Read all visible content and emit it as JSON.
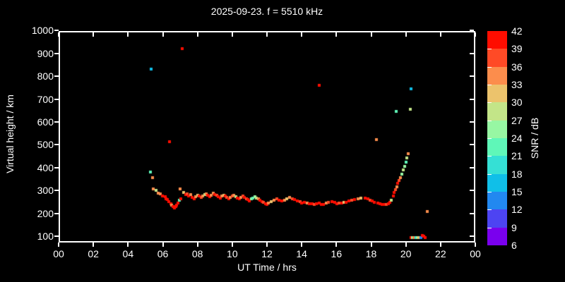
{
  "header": {
    "title": "2025-09-23. f = 5510 kHz"
  },
  "chart_data": {
    "type": "scatter",
    "title": "2025-09-23. f = 5510 kHz",
    "xlabel": "UT Time / hrs",
    "ylabel": "Virtual height / km",
    "colorbar_label": "SNR / dB",
    "background": "#000000",
    "foreground": "#ffffff",
    "xlim": [
      0,
      24
    ],
    "ylim": [
      100,
      1000
    ],
    "grid": false,
    "x_tick_hours": [
      0,
      2,
      4,
      6,
      8,
      10,
      12,
      14,
      16,
      18,
      20,
      22,
      24
    ],
    "x_ticks": [
      "00",
      "02",
      "04",
      "06",
      "08",
      "10",
      "12",
      "14",
      "16",
      "18",
      "20",
      "22",
      "00"
    ],
    "y_ticks": [
      100,
      200,
      300,
      400,
      500,
      600,
      700,
      800,
      900,
      1000
    ],
    "colorbar": {
      "min": 6,
      "max": 42,
      "step": 3,
      "tick_labels": [
        "6",
        "9",
        "12",
        "15",
        "18",
        "21",
        "24",
        "27",
        "30",
        "33",
        "36",
        "39",
        "42"
      ],
      "colors": [
        "#7a00ee",
        "#4d44f2",
        "#2288f0",
        "#10bfe8",
        "#35e0d5",
        "#5ff7b8",
        "#97f7a3",
        "#c3e588",
        "#ecc36c",
        "#fc8d4c",
        "#ff4a26",
        "#ff0d00"
      ]
    },
    "points_format": [
      "ut_hours",
      "virtual_height_km",
      "snr_db"
    ],
    "points": [
      [
        5.28,
        381,
        22
      ],
      [
        5.33,
        830,
        16
      ],
      [
        5.41,
        356,
        34
      ],
      [
        5.44,
        308,
        34
      ],
      [
        5.61,
        301,
        28
      ],
      [
        5.75,
        288,
        34
      ],
      [
        5.87,
        284,
        34
      ],
      [
        5.98,
        277,
        40
      ],
      [
        6.13,
        273,
        40
      ],
      [
        6.2,
        265,
        40
      ],
      [
        6.28,
        260,
        40
      ],
      [
        6.36,
        252,
        40
      ],
      [
        6.39,
        513,
        40
      ],
      [
        6.46,
        243,
        40
      ],
      [
        6.52,
        235,
        34
      ],
      [
        6.6,
        229,
        40
      ],
      [
        6.66,
        223,
        40
      ],
      [
        6.75,
        229,
        40
      ],
      [
        6.79,
        237,
        40
      ],
      [
        6.89,
        245,
        40
      ],
      [
        6.95,
        258,
        22
      ],
      [
        7.01,
        307,
        34
      ],
      [
        7.05,
        262,
        40
      ],
      [
        7.13,
        922,
        40
      ],
      [
        7.2,
        291,
        31
      ],
      [
        7.31,
        281,
        40
      ],
      [
        7.4,
        284,
        37
      ],
      [
        7.5,
        277,
        40
      ],
      [
        7.6,
        282,
        34
      ],
      [
        7.7,
        270,
        40
      ],
      [
        7.8,
        262,
        40
      ],
      [
        7.9,
        272,
        34
      ],
      [
        8.0,
        280,
        31
      ],
      [
        8.1,
        277,
        40
      ],
      [
        8.2,
        270,
        37
      ],
      [
        8.3,
        275,
        34
      ],
      [
        8.4,
        282,
        28
      ],
      [
        8.5,
        285,
        34
      ],
      [
        8.6,
        278,
        40
      ],
      [
        8.7,
        272,
        40
      ],
      [
        8.8,
        280,
        34
      ],
      [
        8.9,
        288,
        34
      ],
      [
        9.0,
        283,
        40
      ],
      [
        9.1,
        278,
        37
      ],
      [
        9.2,
        272,
        40
      ],
      [
        9.3,
        268,
        40
      ],
      [
        9.4,
        275,
        34
      ],
      [
        9.5,
        280,
        31
      ],
      [
        9.6,
        276,
        40
      ],
      [
        9.7,
        270,
        37
      ],
      [
        9.8,
        265,
        40
      ],
      [
        9.9,
        270,
        34
      ],
      [
        10.0,
        276,
        37
      ],
      [
        10.1,
        280,
        34
      ],
      [
        10.2,
        273,
        28
      ],
      [
        10.3,
        268,
        40
      ],
      [
        10.4,
        262,
        40
      ],
      [
        10.5,
        270,
        34
      ],
      [
        10.6,
        276,
        37
      ],
      [
        10.7,
        271,
        40
      ],
      [
        10.8,
        265,
        37
      ],
      [
        10.9,
        259,
        40
      ],
      [
        11.0,
        255,
        40
      ],
      [
        11.1,
        262,
        25
      ],
      [
        11.2,
        268,
        22
      ],
      [
        11.3,
        273,
        25
      ],
      [
        11.4,
        267,
        28
      ],
      [
        11.5,
        262,
        34
      ],
      [
        11.6,
        257,
        40
      ],
      [
        11.7,
        252,
        40
      ],
      [
        11.8,
        247,
        37
      ],
      [
        11.9,
        243,
        40
      ],
      [
        12.0,
        240,
        40
      ],
      [
        12.1,
        245,
        34
      ],
      [
        12.25,
        252,
        31
      ],
      [
        12.4,
        258,
        34
      ],
      [
        12.55,
        263,
        37
      ],
      [
        12.7,
        258,
        40
      ],
      [
        12.85,
        253,
        40
      ],
      [
        13.0,
        258,
        34
      ],
      [
        13.15,
        264,
        31
      ],
      [
        13.3,
        270,
        34
      ],
      [
        13.45,
        265,
        37
      ],
      [
        13.6,
        259,
        40
      ],
      [
        13.75,
        254,
        40
      ],
      [
        13.9,
        250,
        37
      ],
      [
        14.0,
        246,
        40
      ],
      [
        14.15,
        248,
        40
      ],
      [
        14.3,
        244,
        34
      ],
      [
        14.45,
        241,
        40
      ],
      [
        14.6,
        243,
        40
      ],
      [
        14.72,
        239,
        37
      ],
      [
        14.85,
        242,
        40
      ],
      [
        15.0,
        760,
        40
      ],
      [
        15.02,
        245,
        40
      ],
      [
        15.13,
        240,
        40
      ],
      [
        15.26,
        238,
        40
      ],
      [
        15.4,
        244,
        34
      ],
      [
        15.55,
        249,
        37
      ],
      [
        15.74,
        251,
        40
      ],
      [
        15.9,
        247,
        40
      ],
      [
        16.02,
        243,
        40
      ],
      [
        16.15,
        244,
        37
      ],
      [
        16.3,
        246,
        40
      ],
      [
        16.42,
        248,
        31
      ],
      [
        16.55,
        249,
        40
      ],
      [
        16.7,
        253,
        40
      ],
      [
        16.89,
        257,
        37
      ],
      [
        17.05,
        261,
        40
      ],
      [
        17.23,
        264,
        34
      ],
      [
        17.4,
        266,
        31
      ],
      [
        17.64,
        268,
        40
      ],
      [
        17.8,
        262,
        40
      ],
      [
        17.95,
        257,
        37
      ],
      [
        18.05,
        254,
        40
      ],
      [
        18.2,
        249,
        40
      ],
      [
        18.32,
        523,
        34
      ],
      [
        18.39,
        244,
        40
      ],
      [
        18.5,
        241,
        40
      ],
      [
        18.62,
        240,
        40
      ],
      [
        18.75,
        239,
        40
      ],
      [
        18.88,
        240,
        37
      ],
      [
        19.0,
        242,
        40
      ],
      [
        19.08,
        247,
        40
      ],
      [
        19.17,
        257,
        28
      ],
      [
        19.27,
        275,
        40
      ],
      [
        19.33,
        290,
        40
      ],
      [
        19.4,
        303,
        37
      ],
      [
        19.46,
        646,
        22
      ],
      [
        19.47,
        317,
        34
      ],
      [
        19.54,
        330,
        40
      ],
      [
        19.62,
        344,
        37
      ],
      [
        19.7,
        356,
        34
      ],
      [
        19.78,
        372,
        25
      ],
      [
        19.86,
        390,
        28
      ],
      [
        19.93,
        404,
        25
      ],
      [
        20.0,
        425,
        22
      ],
      [
        20.07,
        443,
        28
      ],
      [
        20.14,
        460,
        34
      ],
      [
        20.25,
        654,
        28
      ],
      [
        20.3,
        745,
        16
      ],
      [
        20.29,
        95,
        40
      ],
      [
        20.38,
        95,
        25
      ],
      [
        20.48,
        95,
        34
      ],
      [
        20.57,
        95,
        19
      ],
      [
        20.67,
        95,
        25
      ],
      [
        20.76,
        95,
        31
      ],
      [
        20.86,
        95,
        13
      ],
      [
        20.94,
        103,
        40
      ],
      [
        21.03,
        100,
        40
      ],
      [
        21.12,
        95,
        40
      ],
      [
        21.24,
        207,
        34
      ]
    ]
  }
}
